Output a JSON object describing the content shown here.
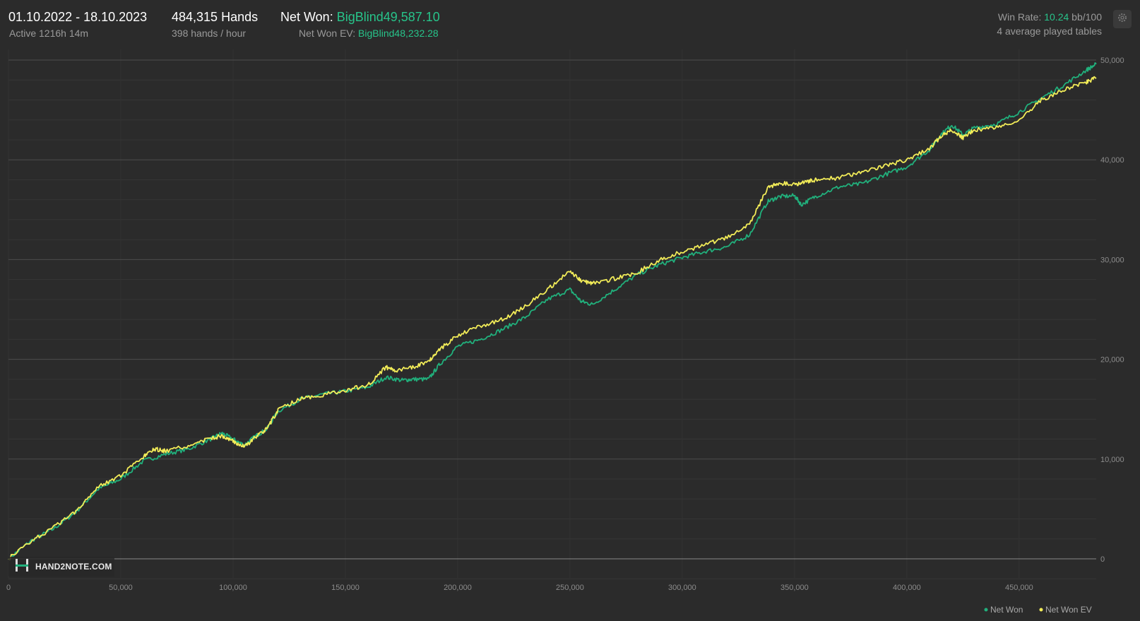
{
  "header": {
    "date_range": "01.10.2022 - 18.10.2023",
    "active": "Active 1216h 14m",
    "hands": "484,315 Hands",
    "hands_per_hour": "398 hands / hour",
    "net_won_label": "Net Won: ",
    "net_won_value": "BigBlind49,587.10",
    "net_won_ev_label": "Net Won  EV: ",
    "net_won_ev_value": "BigBlind48,232.28",
    "win_rate_label": "Win Rate: ",
    "win_rate_value": "10.24",
    "win_rate_unit": " bb/100",
    "tables": "4 average played tables"
  },
  "logo": {
    "text": "HAND2NOTE.COM"
  },
  "colors": {
    "net_won": "#21b07c",
    "net_won_ev": "#f2ec58",
    "background": "#2b2b2b",
    "accent": "#27c48a"
  },
  "icons": {
    "settings": "gear-icon",
    "logo": "hand2note-logo-icon"
  },
  "chart_data": {
    "type": "line",
    "x_ticks": [
      0,
      50000,
      100000,
      150000,
      200000,
      250000,
      300000,
      350000,
      400000,
      450000
    ],
    "x_tick_labels": [
      "0",
      "50,000",
      "100,000",
      "150,000",
      "200,000",
      "250,000",
      "300,000",
      "350,000",
      "400,000",
      "450,000"
    ],
    "y_ticks": [
      0,
      10000,
      20000,
      30000,
      40000,
      50000
    ],
    "y_tick_labels": [
      "0",
      "10,000",
      "20,000",
      "30,000",
      "40,000",
      "50,000"
    ],
    "xlim": [
      0,
      484315
    ],
    "ylim": [
      -2000,
      50000
    ],
    "grid": true,
    "legend_position": "bottom-right",
    "series": [
      {
        "name": "Net Won",
        "color": "#21b07c",
        "points": [
          [
            0,
            0
          ],
          [
            10000,
            1800
          ],
          [
            20000,
            3000
          ],
          [
            30000,
            4700
          ],
          [
            40000,
            7000
          ],
          [
            50000,
            8000
          ],
          [
            60000,
            9800
          ],
          [
            70000,
            10500
          ],
          [
            80000,
            11000
          ],
          [
            90000,
            12000
          ],
          [
            95000,
            12600
          ],
          [
            100000,
            12000
          ],
          [
            105000,
            11400
          ],
          [
            110000,
            12300
          ],
          [
            115000,
            13000
          ],
          [
            120000,
            14800
          ],
          [
            130000,
            16000
          ],
          [
            140000,
            16500
          ],
          [
            150000,
            16800
          ],
          [
            160000,
            17200
          ],
          [
            168000,
            18200
          ],
          [
            175000,
            17900
          ],
          [
            180000,
            18000
          ],
          [
            187000,
            18000
          ],
          [
            192000,
            19500
          ],
          [
            200000,
            21300
          ],
          [
            210000,
            22000
          ],
          [
            220000,
            23000
          ],
          [
            230000,
            24200
          ],
          [
            240000,
            26000
          ],
          [
            250000,
            27000
          ],
          [
            255000,
            25800
          ],
          [
            260000,
            25500
          ],
          [
            270000,
            27000
          ],
          [
            280000,
            28500
          ],
          [
            290000,
            29500
          ],
          [
            300000,
            30200
          ],
          [
            310000,
            30800
          ],
          [
            320000,
            31300
          ],
          [
            330000,
            32500
          ],
          [
            338000,
            35800
          ],
          [
            343000,
            36300
          ],
          [
            350000,
            36400
          ],
          [
            353000,
            35500
          ],
          [
            360000,
            36400
          ],
          [
            370000,
            37300
          ],
          [
            380000,
            37600
          ],
          [
            390000,
            38500
          ],
          [
            400000,
            39300
          ],
          [
            410000,
            41000
          ],
          [
            415000,
            42500
          ],
          [
            420000,
            43500
          ],
          [
            425000,
            42500
          ],
          [
            430000,
            43200
          ],
          [
            440000,
            43600
          ],
          [
            450000,
            44800
          ],
          [
            460000,
            46200
          ],
          [
            470000,
            47500
          ],
          [
            480000,
            49000
          ],
          [
            484315,
            49587
          ]
        ]
      },
      {
        "name": "Net Won  EV",
        "color": "#f2ec58",
        "points": [
          [
            0,
            0
          ],
          [
            10000,
            1800
          ],
          [
            20000,
            3100
          ],
          [
            30000,
            4800
          ],
          [
            40000,
            7300
          ],
          [
            50000,
            8300
          ],
          [
            60000,
            10200
          ],
          [
            65000,
            11000
          ],
          [
            70000,
            10800
          ],
          [
            80000,
            11300
          ],
          [
            90000,
            12100
          ],
          [
            95000,
            12300
          ],
          [
            100000,
            11800
          ],
          [
            105000,
            11200
          ],
          [
            110000,
            12200
          ],
          [
            115000,
            13000
          ],
          [
            120000,
            14900
          ],
          [
            130000,
            16100
          ],
          [
            140000,
            16400
          ],
          [
            150000,
            16900
          ],
          [
            160000,
            17400
          ],
          [
            168000,
            19200
          ],
          [
            172000,
            18900
          ],
          [
            180000,
            19200
          ],
          [
            187000,
            19800
          ],
          [
            192000,
            21000
          ],
          [
            200000,
            22400
          ],
          [
            210000,
            23300
          ],
          [
            220000,
            24000
          ],
          [
            230000,
            25300
          ],
          [
            240000,
            27000
          ],
          [
            250000,
            28800
          ],
          [
            255000,
            27900
          ],
          [
            260000,
            27600
          ],
          [
            270000,
            28100
          ],
          [
            280000,
            28700
          ],
          [
            290000,
            30000
          ],
          [
            300000,
            30800
          ],
          [
            310000,
            31500
          ],
          [
            320000,
            32200
          ],
          [
            330000,
            33500
          ],
          [
            338000,
            37200
          ],
          [
            343000,
            37700
          ],
          [
            350000,
            37500
          ],
          [
            355000,
            37800
          ],
          [
            360000,
            38000
          ],
          [
            370000,
            38200
          ],
          [
            380000,
            38800
          ],
          [
            390000,
            39400
          ],
          [
            400000,
            40000
          ],
          [
            410000,
            41100
          ],
          [
            415000,
            42300
          ],
          [
            420000,
            43000
          ],
          [
            425000,
            42200
          ],
          [
            430000,
            43000
          ],
          [
            440000,
            43200
          ],
          [
            450000,
            44000
          ],
          [
            460000,
            46000
          ],
          [
            470000,
            47000
          ],
          [
            480000,
            47800
          ],
          [
            484315,
            48232
          ]
        ]
      }
    ]
  }
}
